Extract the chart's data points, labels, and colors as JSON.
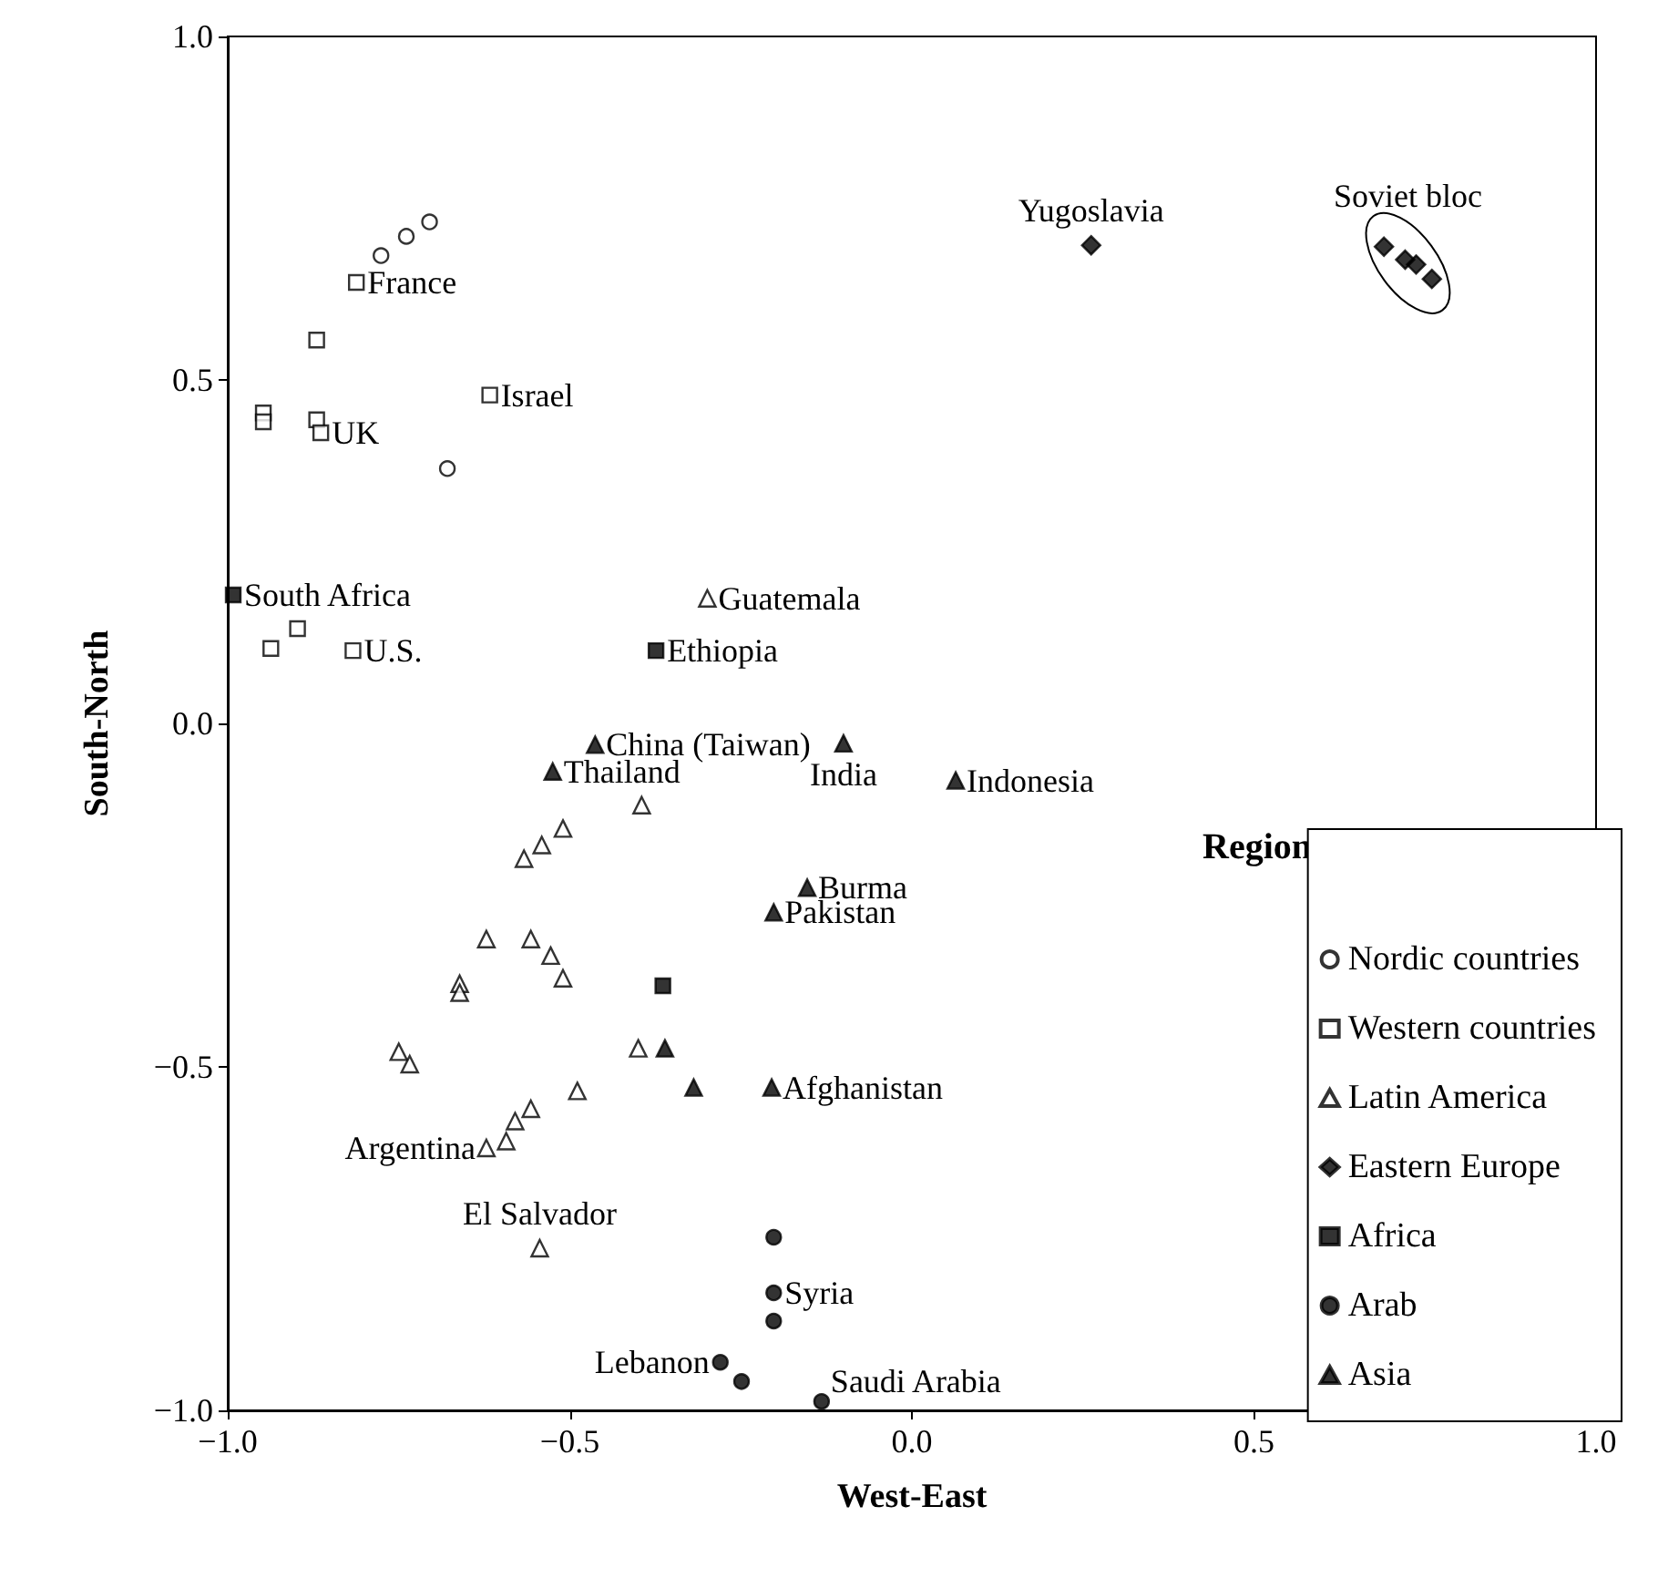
{
  "chart_data": {
    "type": "scatter",
    "xlabel": "West-East",
    "ylabel": "South-North",
    "legend_title": "Region",
    "legend": "bottom right",
    "grid": false,
    "xlim": [
      -1,
      1
    ],
    "ylim": [
      -1,
      1
    ],
    "xticks": [
      {
        "value": -1,
        "label": "−1.0"
      },
      {
        "value": -0.5,
        "label": "−0.5"
      },
      {
        "value": 0,
        "label": "0.0"
      },
      {
        "value": 0.5,
        "label": "0.5"
      },
      {
        "value": 1,
        "label": "1.0"
      }
    ],
    "yticks": [
      {
        "value": -1,
        "label": "−1.0"
      },
      {
        "value": -0.5,
        "label": "−0.5"
      },
      {
        "value": 0,
        "label": "0.0"
      },
      {
        "value": 0.5,
        "label": "0.5"
      },
      {
        "value": 1,
        "label": "1.0"
      }
    ],
    "series": [
      {
        "name": "Nordic countries",
        "color": "#ffffff",
        "marker": "circle",
        "x": [
          -0.776,
          -0.739,
          -0.705,
          -0.679
        ],
        "values": [
          0.681,
          0.709,
          0.73,
          0.371
        ]
      },
      {
        "name": "Western countries",
        "color": "#ffffff",
        "marker": "square",
        "x": [
          -0.812,
          -0.87,
          -0.617,
          -0.948,
          -0.948,
          -0.87,
          -0.864,
          -0.817,
          -0.937,
          -0.898
        ],
        "values": [
          0.642,
          0.558,
          0.478,
          0.452,
          0.439,
          0.442,
          0.423,
          0.106,
          0.109,
          0.138
        ]
      },
      {
        "name": "Latin America",
        "color": "#ffffff",
        "marker": "triangle",
        "x": [
          -0.299,
          -0.395,
          -0.51,
          -0.541,
          -0.567,
          -0.622,
          -0.557,
          -0.528,
          -0.51,
          -0.661,
          -0.661,
          -0.4,
          -0.489,
          -0.557,
          -0.58,
          -0.593,
          -0.622,
          -0.75,
          -0.734,
          -0.544
        ],
        "values": [
          0.182,
          -0.119,
          -0.153,
          -0.177,
          -0.197,
          -0.314,
          -0.314,
          -0.338,
          -0.371,
          -0.379,
          -0.392,
          -0.473,
          -0.535,
          -0.561,
          -0.579,
          -0.608,
          -0.618,
          -0.478,
          -0.496,
          -0.764
        ]
      },
      {
        "name": "Eastern Europe",
        "color": "#000000",
        "marker": "diamond",
        "x": [
          0.262,
          0.69,
          0.721,
          0.737,
          0.76
        ],
        "values": [
          0.696,
          0.694,
          0.675,
          0.668,
          0.647
        ]
      },
      {
        "name": "Africa",
        "color": "#000000",
        "marker": "square",
        "x": [
          -0.992,
          -0.374,
          -0.364
        ],
        "values": [
          0.187,
          0.106,
          -0.382
        ]
      },
      {
        "name": "Arab",
        "color": "#000000",
        "marker": "circle",
        "x": [
          -0.202,
          -0.202,
          -0.202,
          -0.28,
          -0.249,
          -0.132
        ],
        "values": [
          -0.748,
          -0.829,
          -0.87,
          -0.93,
          -0.958,
          -0.987
        ]
      },
      {
        "name": "Asia",
        "color": "#000000",
        "marker": "triangle",
        "x": [
          -0.463,
          -0.1,
          -0.525,
          0.064,
          -0.153,
          -0.202,
          -0.361,
          -0.319,
          -0.205
        ],
        "values": [
          -0.031,
          -0.029,
          -0.07,
          -0.083,
          -0.239,
          -0.275,
          -0.473,
          -0.53,
          -0.53
        ]
      }
    ],
    "annotations": [
      {
        "text": "France",
        "x": -0.812,
        "y": 0.642
      },
      {
        "text": "Israel",
        "x": -0.617,
        "y": 0.478
      },
      {
        "text": "UK",
        "x": -0.864,
        "y": 0.423
      },
      {
        "text": "South Africa",
        "x": -0.992,
        "y": 0.187
      },
      {
        "text": "U.S.",
        "x": -0.817,
        "y": 0.106
      },
      {
        "text": "Guatemala",
        "x": -0.299,
        "y": 0.182
      },
      {
        "text": "Ethiopia",
        "x": -0.374,
        "y": 0.106
      },
      {
        "text": "China (Taiwan)",
        "x": -0.463,
        "y": -0.031
      },
      {
        "text": "Thailand",
        "x": -0.525,
        "y": -0.07
      },
      {
        "text": "India",
        "x": -0.1,
        "y": -0.029
      },
      {
        "text": "Indonesia",
        "x": 0.064,
        "y": -0.083
      },
      {
        "text": "Burma",
        "x": -0.153,
        "y": -0.239
      },
      {
        "text": "Pakistan",
        "x": -0.202,
        "y": -0.275
      },
      {
        "text": "Afghanistan",
        "x": -0.205,
        "y": -0.53
      },
      {
        "text": "Argentina",
        "x": -0.622,
        "y": -0.618
      },
      {
        "text": "El Salvador",
        "x": -0.544,
        "y": -0.764
      },
      {
        "text": "Syria",
        "x": -0.202,
        "y": -0.829
      },
      {
        "text": "Lebanon",
        "x": -0.28,
        "y": -0.93
      },
      {
        "text": "Saudi Arabia",
        "x": -0.132,
        "y": -0.987
      },
      {
        "text": "Yugoslavia",
        "x": 0.262,
        "y": 0.696
      },
      {
        "text": "Soviet bloc",
        "x": 0.725,
        "y": 0.67
      }
    ]
  }
}
